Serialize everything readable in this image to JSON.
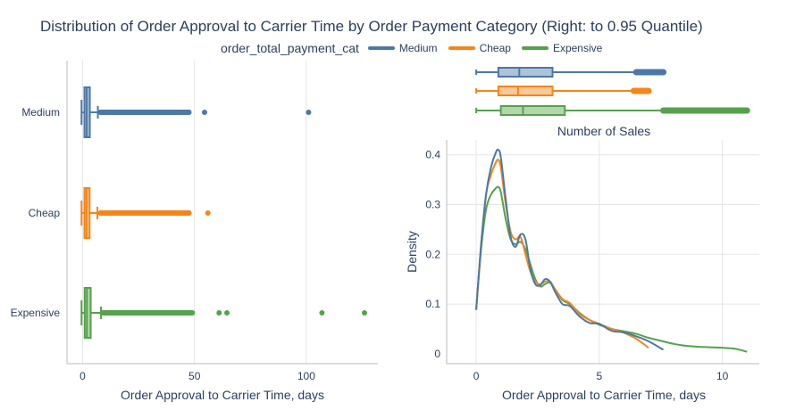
{
  "title": "Distribution of Order Approval to Carrier Time by Order Payment Category (Right: to 0.95 Quantile)",
  "legend": {
    "title": "order_total_payment_cat",
    "items": [
      {
        "name": "Medium",
        "color": "#4c78a8"
      },
      {
        "name": "Cheap",
        "color": "#f58518"
      },
      {
        "name": "Expensive",
        "color": "#54a24b"
      }
    ]
  },
  "chart_data": [
    {
      "type": "box",
      "orientation": "horizontal",
      "xlabel": "Order Approval to Carrier Time, days",
      "xlim": [
        -7,
        132
      ],
      "xticks": [
        0,
        50,
        100
      ],
      "tick_labels": [
        "0",
        "50",
        "100"
      ],
      "grid": true,
      "categories": [
        "Medium",
        "Cheap",
        "Expensive"
      ],
      "series": [
        {
          "name": "Medium",
          "color": "#4c78a8",
          "min": -0.5,
          "q1": 0.8,
          "median": 1.8,
          "q3": 3.2,
          "upper_fence": 6.8,
          "outliers": [
            8,
            10,
            12,
            14,
            16,
            18,
            20,
            22,
            24,
            26,
            28,
            30,
            32,
            34,
            36,
            38,
            40,
            42,
            44,
            46,
            47.5,
            54.5,
            101
          ]
        },
        {
          "name": "Cheap",
          "color": "#f58518",
          "min": -0.5,
          "q1": 0.8,
          "median": 1.7,
          "q3": 3.1,
          "upper_fence": 6.6,
          "outliers": [
            8,
            10,
            12,
            14,
            16,
            18,
            20,
            22,
            24,
            26,
            28,
            30,
            32,
            34,
            36,
            38,
            40,
            41.5,
            47.5,
            56
          ]
        },
        {
          "name": "Expensive",
          "color": "#54a24b",
          "min": -0.5,
          "q1": 0.9,
          "median": 1.9,
          "q3": 3.6,
          "upper_fence": 8.2,
          "outliers": [
            9,
            11,
            13,
            15,
            17,
            19,
            21,
            23,
            25,
            27,
            29,
            31,
            33,
            35,
            37,
            39,
            41,
            43,
            45,
            47,
            49,
            61,
            64.5,
            107,
            126
          ]
        }
      ]
    },
    {
      "type": "box",
      "orientation": "horizontal",
      "xlim": [
        -1.2,
        11.5
      ],
      "categories": [
        "Medium",
        "Cheap",
        "Expensive"
      ],
      "series": [
        {
          "name": "Medium",
          "color": "#4c78a8",
          "min": 0.0,
          "q1": 0.9,
          "median": 1.75,
          "q3": 3.1,
          "upper_fence": 6.5,
          "outlier_range": [
            6.5,
            7.6
          ]
        },
        {
          "name": "Cheap",
          "color": "#f58518",
          "min": 0.0,
          "q1": 0.9,
          "median": 1.7,
          "q3": 3.1,
          "upper_fence": 6.4,
          "outlier_range": [
            6.4,
            7.0
          ]
        },
        {
          "name": "Expensive",
          "color": "#54a24b",
          "min": 0.0,
          "q1": 1.0,
          "median": 1.9,
          "q3": 3.6,
          "upper_fence": 7.6,
          "outlier_range": [
            7.6,
            11.0
          ]
        }
      ]
    },
    {
      "type": "line",
      "title": "Number of Sales",
      "xlabel": "Order Approval to Carrier Time, days",
      "ylabel": "Density",
      "xlim": [
        -1.2,
        11.5
      ],
      "ylim": [
        -0.02,
        0.43
      ],
      "xticks": [
        0,
        5,
        10
      ],
      "yticks": [
        0,
        0.1,
        0.2,
        0.3,
        0.4
      ],
      "xtick_labels": [
        "0",
        "5",
        "10"
      ],
      "ytick_labels": [
        "0",
        "0.1",
        "0.2",
        "0.3",
        "0.4"
      ],
      "grid": true,
      "series": [
        {
          "name": "Cheap",
          "color": "#f58518",
          "x": [
            0,
            0.2,
            0.4,
            0.6,
            0.8,
            0.9,
            1.0,
            1.2,
            1.4,
            1.6,
            1.8,
            2.0,
            2.2,
            2.4,
            2.6,
            2.8,
            3.0,
            3.2,
            3.5,
            3.8,
            4.2,
            4.6,
            5.0,
            5.5,
            6.0,
            6.5,
            7.0
          ],
          "y": [
            0.09,
            0.22,
            0.32,
            0.36,
            0.385,
            0.39,
            0.375,
            0.3,
            0.245,
            0.23,
            0.235,
            0.2,
            0.165,
            0.145,
            0.14,
            0.145,
            0.145,
            0.13,
            0.11,
            0.102,
            0.08,
            0.068,
            0.06,
            0.05,
            0.042,
            0.03,
            0.012
          ]
        },
        {
          "name": "Medium",
          "color": "#4c78a8",
          "x": [
            0,
            0.2,
            0.4,
            0.6,
            0.8,
            0.9,
            1.0,
            1.2,
            1.4,
            1.6,
            1.8,
            2.0,
            2.2,
            2.4,
            2.6,
            2.8,
            3.0,
            3.2,
            3.5,
            3.8,
            4.2,
            4.6,
            5.0,
            5.5,
            6.0,
            6.5,
            7.0,
            7.6
          ],
          "y": [
            0.088,
            0.22,
            0.32,
            0.375,
            0.405,
            0.41,
            0.395,
            0.31,
            0.235,
            0.215,
            0.24,
            0.23,
            0.17,
            0.14,
            0.138,
            0.15,
            0.145,
            0.125,
            0.1,
            0.096,
            0.075,
            0.062,
            0.06,
            0.046,
            0.043,
            0.035,
            0.025,
            0.008
          ]
        },
        {
          "name": "Expensive",
          "color": "#54a24b",
          "x": [
            0,
            0.2,
            0.4,
            0.6,
            0.8,
            0.9,
            1.0,
            1.2,
            1.4,
            1.6,
            1.8,
            2.0,
            2.2,
            2.4,
            2.6,
            2.8,
            3.0,
            3.2,
            3.5,
            3.8,
            4.2,
            4.6,
            5.0,
            5.5,
            6.0,
            6.5,
            7.0,
            7.5,
            8.0,
            8.5,
            9.0,
            9.5,
            10.0,
            10.5,
            11.0
          ],
          "y": [
            0.09,
            0.21,
            0.29,
            0.32,
            0.333,
            0.335,
            0.325,
            0.27,
            0.23,
            0.22,
            0.225,
            0.21,
            0.18,
            0.15,
            0.135,
            0.14,
            0.143,
            0.13,
            0.108,
            0.1,
            0.082,
            0.068,
            0.058,
            0.05,
            0.045,
            0.04,
            0.032,
            0.026,
            0.02,
            0.016,
            0.014,
            0.013,
            0.012,
            0.01,
            0.004
          ]
        }
      ]
    }
  ]
}
